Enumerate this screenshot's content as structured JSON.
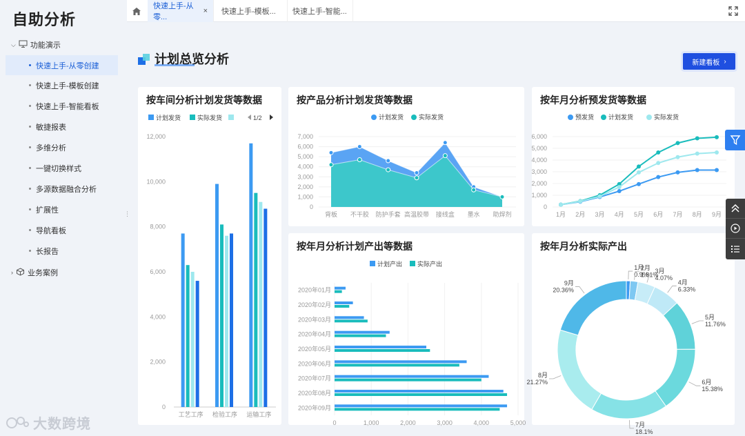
{
  "app": {
    "title": "自助分析"
  },
  "sidebar": {
    "group1": "功能演示",
    "items": [
      {
        "label": "快速上手-从零创建",
        "active": true
      },
      {
        "label": "快速上手-模板创建"
      },
      {
        "label": "快速上手-智能看板"
      },
      {
        "label": "敏捷报表"
      },
      {
        "label": "多维分析"
      },
      {
        "label": "一键切换样式"
      },
      {
        "label": "多源数据融合分析"
      },
      {
        "label": "扩展性"
      },
      {
        "label": "导航看板"
      },
      {
        "label": "长报告"
      }
    ],
    "group2": "业务案例"
  },
  "tabs": [
    {
      "label": "快速上手-从零...",
      "active": true,
      "close": "×"
    },
    {
      "label": "快速上手-模板..."
    },
    {
      "label": "快速上手-智能..."
    }
  ],
  "page": {
    "title": "计划总览分析",
    "new_button": "新建看板"
  },
  "colors": {
    "blue": "#3c9af2",
    "teal": "#19bcbc",
    "light": "#9ee8ee",
    "dark": "#1d6fe6",
    "brand": "#1f4fe0"
  },
  "cards": {
    "workshop": {
      "title": "按车间分析计划发货等数据",
      "pager": "1/2"
    },
    "product": {
      "title": "按产品分析计划发货等数据"
    },
    "forecast": {
      "title": "按年月分析预发货等数据"
    },
    "output": {
      "title": "按年月分析计划产出等数据"
    },
    "actual": {
      "title": "按年月分析实际产出"
    }
  },
  "watermark": "大数跨境",
  "chart_data": [
    {
      "type": "bar",
      "title": "按车间分析计划发货等数据",
      "categories": [
        "工艺工序",
        "检验工序",
        "运输工序"
      ],
      "legend": [
        "计划发货",
        "实际发货",
        ""
      ],
      "series": [
        {
          "name": "计划发货",
          "values": [
            7700,
            9900,
            11700
          ]
        },
        {
          "name": "实际发货",
          "values": [
            6300,
            8100,
            9500
          ]
        },
        {
          "values": [
            6000,
            7600,
            9100
          ]
        },
        {
          "values": [
            5600,
            7700,
            8800
          ]
        }
      ],
      "yticks": [
        "0",
        "2,000",
        "4,000",
        "6,000",
        "8,000",
        "10,000",
        "12,000"
      ],
      "ylim": [
        0,
        12000
      ]
    },
    {
      "type": "area",
      "title": "按产品分析计划发货等数据",
      "categories": [
        "背板",
        "不干胶",
        "防护手套",
        "高温胶带",
        "接线盒",
        "墨水",
        "助焊剂"
      ],
      "series": [
        {
          "name": "计划发货",
          "values": [
            5400,
            6000,
            4600,
            3400,
            6400,
            2000,
            1000
          ]
        },
        {
          "name": "实际发货",
          "values": [
            4200,
            4700,
            3700,
            2900,
            5100,
            1700,
            1000
          ]
        }
      ],
      "yticks": [
        "0",
        "1,000",
        "2,000",
        "3,000",
        "4,000",
        "5,000",
        "6,000",
        "7,000"
      ],
      "ylim": [
        0,
        7000
      ]
    },
    {
      "type": "line",
      "title": "按年月分析预发货等数据",
      "categories": [
        "1月",
        "2月",
        "3月",
        "4月",
        "5月",
        "6月",
        "7月",
        "8月",
        "9月"
      ],
      "series": [
        {
          "name": "预发货",
          "values": [
            200,
            450,
            850,
            1350,
            1950,
            2550,
            2950,
            3150,
            3150
          ]
        },
        {
          "name": "计划发货",
          "values": [
            200,
            500,
            1000,
            1950,
            3450,
            4650,
            5450,
            5850,
            5950
          ]
        },
        {
          "name": "实际发货",
          "values": [
            200,
            480,
            900,
            1700,
            2950,
            3750,
            4250,
            4550,
            4650
          ]
        }
      ],
      "yticks": [
        "0",
        "1,000",
        "2,000",
        "3,000",
        "4,000",
        "5,000",
        "6,000"
      ],
      "ylim": [
        0,
        6000
      ]
    },
    {
      "type": "bar",
      "title": "按年月分析计划产出等数据",
      "orientation": "horizontal",
      "categories": [
        "2020年01月",
        "2020年02月",
        "2020年03月",
        "2020年04月",
        "2020年05月",
        "2020年06月",
        "2020年07月",
        "2020年08月",
        "2020年09月"
      ],
      "series": [
        {
          "name": "计划产出",
          "values": [
            300,
            500,
            800,
            1500,
            2500,
            3600,
            4200,
            4600,
            4700
          ]
        },
        {
          "name": "实际产出",
          "values": [
            200,
            400,
            900,
            1400,
            2600,
            3400,
            4000,
            4700,
            4500
          ]
        }
      ],
      "xticks": [
        "0",
        "1,000",
        "2,000",
        "3,000",
        "4,000",
        "5,000"
      ],
      "xlim": [
        0,
        5000
      ]
    },
    {
      "type": "pie",
      "title": "按年月分析实际产出",
      "slices": [
        {
          "label": "1月",
          "pct": "0.9%",
          "value": 0.9,
          "color": "#3c9af2"
        },
        {
          "label": "2月",
          "pct": "1.81%",
          "value": 1.81,
          "color": "#7ec8f2"
        },
        {
          "label": "3月",
          "pct": "4.07%",
          "value": 4.07,
          "color": "#c7ecf8"
        },
        {
          "label": "4月",
          "pct": "6.33%",
          "value": 6.33,
          "color": "#bfe9f7"
        },
        {
          "label": "5月",
          "pct": "11.76%",
          "value": 11.76,
          "color": "#5fd2d9"
        },
        {
          "label": "6月",
          "pct": "15.38%",
          "value": 15.38,
          "color": "#6bd9dd"
        },
        {
          "label": "7月",
          "pct": "18.1%",
          "value": 18.1,
          "color": "#86e2e6"
        },
        {
          "label": "8月",
          "pct": "21.27%",
          "value": 21.27,
          "color": "#a9ecee"
        },
        {
          "label": "9月",
          "pct": "20.36%",
          "value": 20.36,
          "color": "#4fb8e8"
        }
      ]
    }
  ]
}
